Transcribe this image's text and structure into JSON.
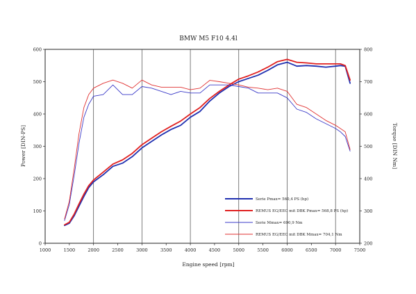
{
  "chart_data": {
    "type": "line",
    "title": "BMW M5 F10 4.4l",
    "xlabel": "Engine speed [rpm]",
    "ylabel_left": "Power [DIN-PS]",
    "ylabel_right": "Torque [DIN Nm]",
    "xlim": [
      1000,
      7500
    ],
    "ylim_left": [
      0,
      600
    ],
    "ylim_right": [
      200,
      800
    ],
    "x_ticks": [
      1000,
      1500,
      2000,
      2500,
      3000,
      3500,
      4000,
      4500,
      5000,
      5500,
      6000,
      6500,
      7000,
      7500
    ],
    "y_ticks_left": [
      0,
      100,
      200,
      300,
      400,
      500,
      600
    ],
    "y_ticks_right": [
      200,
      300,
      400,
      500,
      600,
      700,
      800
    ],
    "grid": "vertical lines at 2000, 3000, 4000, 5000, 6000, 7000",
    "legend_position": "lower-right",
    "series": [
      {
        "name": "Serie Pmax= 560,4 PS (hp)",
        "axis": "left",
        "color": "#1f2fb0",
        "style": "thick",
        "x": [
          1400,
          1500,
          1600,
          1700,
          1800,
          1900,
          2000,
          2200,
          2400,
          2600,
          2800,
          3000,
          3200,
          3400,
          3600,
          3800,
          4000,
          4200,
          4400,
          4600,
          4800,
          5000,
          5200,
          5400,
          5600,
          5800,
          6000,
          6200,
          6400,
          6600,
          6800,
          7000,
          7100,
          7200,
          7300
        ],
        "y": [
          55,
          62,
          85,
          115,
          145,
          172,
          190,
          212,
          238,
          248,
          268,
          295,
          315,
          335,
          352,
          365,
          390,
          408,
          440,
          465,
          485,
          500,
          510,
          520,
          535,
          552,
          560,
          548,
          550,
          548,
          545,
          548,
          550,
          548,
          495
        ]
      },
      {
        "name": "REMUS EG/EEC mit DBK Pmax= 568,8 PS (hp)",
        "axis": "left",
        "color": "#e02020",
        "style": "thick",
        "x": [
          1400,
          1500,
          1600,
          1700,
          1800,
          1900,
          2000,
          2200,
          2400,
          2600,
          2800,
          3000,
          3200,
          3400,
          3600,
          3800,
          4000,
          4200,
          4400,
          4600,
          4800,
          5000,
          5200,
          5400,
          5600,
          5800,
          6000,
          6200,
          6400,
          6600,
          6800,
          7000,
          7100,
          7200,
          7300
        ],
        "y": [
          57,
          65,
          90,
          122,
          152,
          178,
          196,
          220,
          245,
          258,
          278,
          305,
          325,
          345,
          362,
          378,
          400,
          420,
          448,
          470,
          490,
          508,
          518,
          530,
          545,
          562,
          569,
          560,
          558,
          555,
          555,
          555,
          555,
          550,
          505
        ]
      },
      {
        "name": "Serie Mmax= 690,9 Nm",
        "axis": "right",
        "color": "#3a3ac8",
        "style": "thin",
        "x": [
          1400,
          1500,
          1600,
          1700,
          1800,
          1900,
          2000,
          2200,
          2400,
          2600,
          2800,
          3000,
          3200,
          3400,
          3600,
          3800,
          4000,
          4200,
          4400,
          4600,
          4800,
          5000,
          5200,
          5400,
          5600,
          5800,
          6000,
          6200,
          6400,
          6600,
          6800,
          7000,
          7100,
          7200,
          7300
        ],
        "y": [
          270,
          320,
          410,
          510,
          590,
          630,
          655,
          660,
          690,
          660,
          660,
          685,
          680,
          670,
          660,
          670,
          665,
          665,
          690,
          690,
          690,
          685,
          680,
          665,
          665,
          665,
          650,
          615,
          605,
          585,
          570,
          555,
          545,
          530,
          485
        ]
      },
      {
        "name": "REMUS EG/EEC mit DBK Mmax= 704,1 Nm",
        "axis": "right",
        "color": "#e03030",
        "style": "thin",
        "x": [
          1400,
          1500,
          1600,
          1700,
          1800,
          1900,
          2000,
          2200,
          2400,
          2600,
          2800,
          3000,
          3200,
          3400,
          3600,
          3800,
          4000,
          4200,
          4400,
          4600,
          4800,
          5000,
          5200,
          5400,
          5600,
          5800,
          6000,
          6200,
          6400,
          6600,
          6800,
          7000,
          7100,
          7200,
          7300
        ],
        "y": [
          275,
          330,
          430,
          540,
          620,
          660,
          680,
          695,
          705,
          695,
          680,
          705,
          690,
          683,
          683,
          683,
          675,
          680,
          704,
          700,
          695,
          690,
          683,
          680,
          675,
          680,
          670,
          630,
          620,
          600,
          580,
          565,
          555,
          545,
          490
        ]
      }
    ]
  }
}
